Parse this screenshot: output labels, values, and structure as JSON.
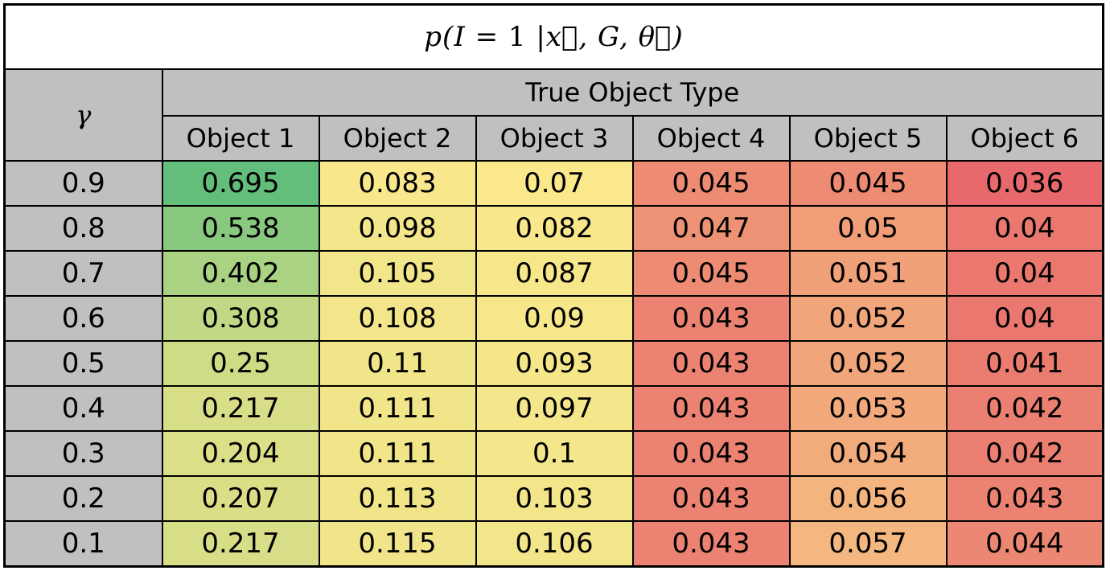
{
  "title": "p(I = 1 |x⃗, G, θ⃗)",
  "corner_label": "γ",
  "group_header": "True Object Type",
  "chart_data": {
    "type": "heatmap",
    "title": "p(I = 1 |x⃗, G, θ⃗)",
    "row_label": "γ",
    "column_group_label": "True Object Type",
    "columns": [
      "Object 1",
      "Object 2",
      "Object 3",
      "Object 4",
      "Object 5",
      "Object 6"
    ],
    "rows": [
      "0.9",
      "0.8",
      "0.7",
      "0.6",
      "0.5",
      "0.4",
      "0.3",
      "0.2",
      "0.1"
    ],
    "values": [
      [
        0.695,
        0.083,
        0.07,
        0.045,
        0.045,
        0.036
      ],
      [
        0.538,
        0.098,
        0.082,
        0.047,
        0.05,
        0.04
      ],
      [
        0.402,
        0.105,
        0.087,
        0.045,
        0.051,
        0.04
      ],
      [
        0.308,
        0.108,
        0.09,
        0.043,
        0.052,
        0.04
      ],
      [
        0.25,
        0.11,
        0.093,
        0.043,
        0.052,
        0.041
      ],
      [
        0.217,
        0.111,
        0.097,
        0.043,
        0.053,
        0.042
      ],
      [
        0.204,
        0.111,
        0.1,
        0.043,
        0.054,
        0.042
      ],
      [
        0.207,
        0.113,
        0.103,
        0.043,
        0.056,
        0.043
      ],
      [
        0.217,
        0.115,
        0.106,
        0.043,
        0.057,
        0.044
      ]
    ],
    "display_values": [
      [
        "0.695",
        "0.083",
        "0.07",
        "0.045",
        "0.045",
        "0.036"
      ],
      [
        "0.538",
        "0.098",
        "0.082",
        "0.047",
        "0.05",
        "0.04"
      ],
      [
        "0.402",
        "0.105",
        "0.087",
        "0.045",
        "0.051",
        "0.04"
      ],
      [
        "0.308",
        "0.108",
        "0.09",
        "0.043",
        "0.052",
        "0.04"
      ],
      [
        "0.25",
        "0.11",
        "0.093",
        "0.043",
        "0.052",
        "0.041"
      ],
      [
        "0.217",
        "0.111",
        "0.097",
        "0.043",
        "0.053",
        "0.042"
      ],
      [
        "0.204",
        "0.111",
        "0.1",
        "0.043",
        "0.054",
        "0.042"
      ],
      [
        "0.207",
        "0.113",
        "0.103",
        "0.043",
        "0.056",
        "0.043"
      ],
      [
        "0.217",
        "0.115",
        "0.106",
        "0.043",
        "0.057",
        "0.044"
      ]
    ],
    "color_scale": {
      "type": "green-yellow-red",
      "low": "#e8696b",
      "mid": "#fbe88b",
      "high": "#63be7b"
    },
    "header_color": "#c0c0c0"
  }
}
